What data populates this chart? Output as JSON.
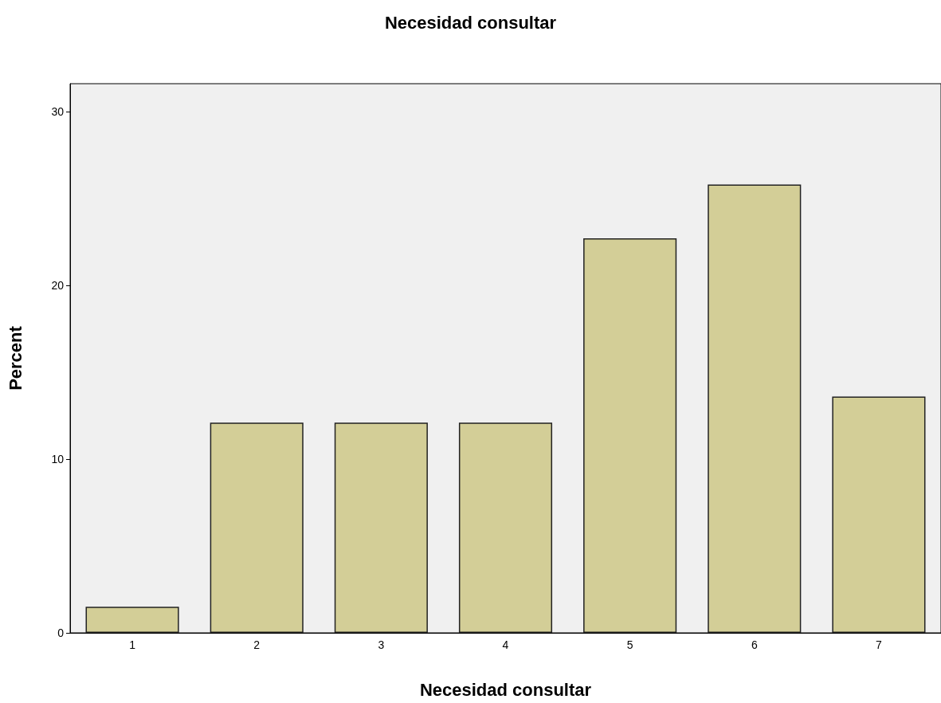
{
  "chart_data": {
    "type": "bar",
    "title": "Necesidad consultar",
    "xlabel": "Necesidad consultar",
    "ylabel": "Percent",
    "categories": [
      "1",
      "2",
      "3",
      "4",
      "5",
      "6",
      "7"
    ],
    "values": [
      1.5,
      12.1,
      12.1,
      12.1,
      22.7,
      25.8,
      13.6
    ],
    "color": "#d3ce97",
    "ylim": [
      0,
      31.6
    ],
    "yticks": [
      0,
      10,
      20,
      30
    ],
    "grid": false
  }
}
